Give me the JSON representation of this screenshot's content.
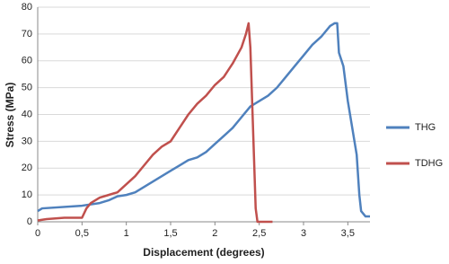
{
  "chart_data": {
    "type": "line",
    "x_label": "Displacement (degrees)",
    "y_label": "Stress (MPa)",
    "xlim": [
      0,
      3.75
    ],
    "ylim": [
      0,
      80
    ],
    "xticks": [
      0,
      {
        "value": 0.5,
        "label": "0,5"
      },
      1,
      {
        "value": 1.5,
        "label": "1,5"
      },
      2,
      {
        "value": 2.5,
        "label": "2,5"
      },
      3,
      {
        "value": 3.5,
        "label": "3,5"
      }
    ],
    "yticks": [
      0,
      10,
      20,
      30,
      40,
      50,
      60,
      70,
      80
    ],
    "grid": true,
    "legend": "right",
    "series": [
      {
        "name": "THG",
        "color": "#4f81bd",
        "x": [
          0,
          0.05,
          0.5,
          0.7,
          0.8,
          0.9,
          1.0,
          1.1,
          1.2,
          1.3,
          1.4,
          1.5,
          1.6,
          1.7,
          1.8,
          1.9,
          2.0,
          2.1,
          2.2,
          2.3,
          2.4,
          2.5,
          2.6,
          2.7,
          2.8,
          2.9,
          3.0,
          3.1,
          3.2,
          3.3,
          3.35,
          3.38,
          3.4,
          3.45,
          3.5,
          3.55,
          3.6,
          3.63,
          3.65,
          3.7,
          3.75
        ],
        "values": [
          4,
          5,
          6,
          7,
          8,
          9.5,
          10,
          11,
          13,
          15,
          17,
          19,
          21,
          23,
          24,
          26,
          29,
          32,
          35,
          39,
          43,
          45,
          47,
          50,
          54,
          58,
          62,
          66,
          69,
          73,
          74,
          74,
          63,
          58,
          45,
          35,
          25,
          10,
          4,
          2,
          2
        ]
      },
      {
        "name": "TDHG",
        "color": "#c0504d",
        "x": [
          0,
          0.1,
          0.3,
          0.5,
          0.55,
          0.6,
          0.7,
          0.8,
          0.9,
          1.0,
          1.1,
          1.2,
          1.3,
          1.4,
          1.5,
          1.6,
          1.7,
          1.8,
          1.9,
          2.0,
          2.1,
          2.2,
          2.3,
          2.35,
          2.38,
          2.4,
          2.42,
          2.44,
          2.46,
          2.48,
          2.6,
          2.65
        ],
        "values": [
          0.5,
          1,
          1.5,
          1.5,
          5,
          7,
          9,
          10,
          11,
          14,
          17,
          21,
          25,
          28,
          30,
          35,
          40,
          44,
          47,
          51,
          54,
          59,
          65,
          70,
          74,
          65,
          45,
          25,
          5,
          0,
          0,
          0
        ]
      }
    ]
  }
}
